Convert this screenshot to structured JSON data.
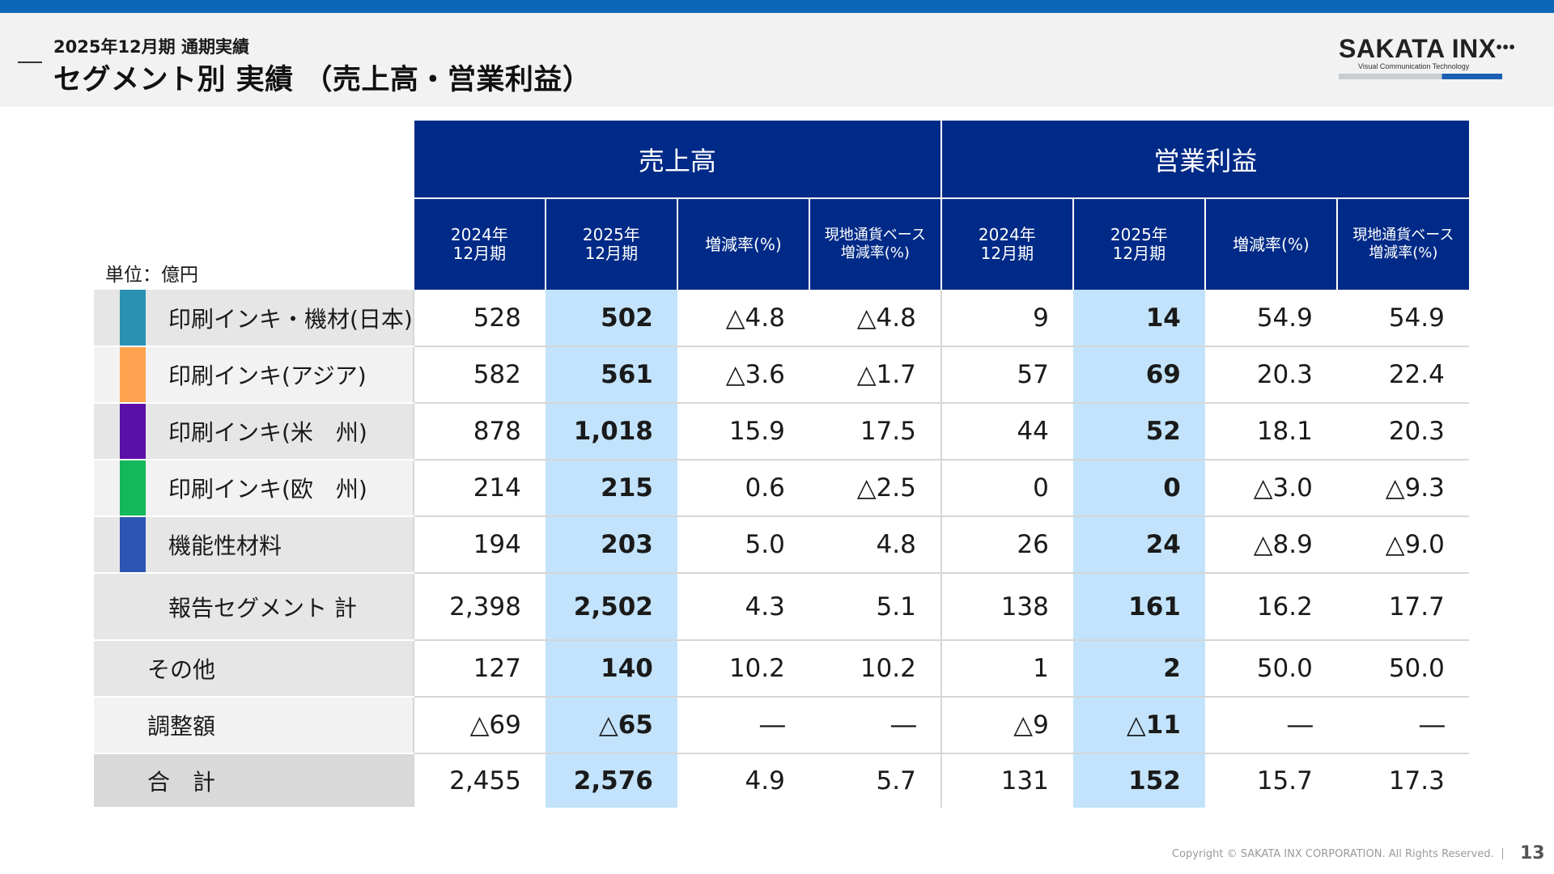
{
  "header": {
    "subtitle": "2025年12月期 通期実績",
    "title": "セグメント別 実績 （売上高・営業利益）"
  },
  "logo": {
    "name": "SAKATA INX",
    "tagline": "Visual Communication Technology"
  },
  "unit_label": "単位：億円",
  "table": {
    "groups": [
      "売上高",
      "営業利益"
    ],
    "subheaders": [
      [
        "2024年",
        "12月期"
      ],
      [
        "2025年",
        "12月期"
      ],
      [
        "増減率(%)"
      ],
      [
        "現地通貨ベース",
        "増減率(%)"
      ]
    ],
    "rows": [
      {
        "label": "印刷インキ・機材(日本)",
        "color": "#2b91b3",
        "values": [
          "528",
          "502",
          "△4.8",
          "△4.8",
          "9",
          "14",
          "54.9",
          "54.9"
        ]
      },
      {
        "label": "印刷インキ(アジア)",
        "color": "#ffa24f",
        "values": [
          "582",
          "561",
          "△3.6",
          "△1.7",
          "57",
          "69",
          "20.3",
          "22.4"
        ]
      },
      {
        "label": "印刷インキ(米　州)",
        "color": "#5a0fa6",
        "values": [
          "878",
          "1,018",
          "15.9",
          "17.5",
          "44",
          "52",
          "18.1",
          "20.3"
        ]
      },
      {
        "label": "印刷インキ(欧　州)",
        "color": "#12b85b",
        "values": [
          "214",
          "215",
          "0.6",
          "△2.5",
          "0",
          "0",
          "△3.0",
          "△9.3"
        ]
      },
      {
        "label": "機能性材料",
        "color": "#2d55b5",
        "values": [
          "194",
          "203",
          "5.0",
          "4.8",
          "26",
          "24",
          "△8.9",
          "△9.0"
        ]
      },
      {
        "label": "報告セグメント 計",
        "color": "",
        "values": [
          "2,398",
          "2,502",
          "4.3",
          "5.1",
          "138",
          "161",
          "16.2",
          "17.7"
        ]
      },
      {
        "label": "その他",
        "color": "",
        "values": [
          "127",
          "140",
          "10.2",
          "10.2",
          "1",
          "2",
          "50.0",
          "50.0"
        ]
      },
      {
        "label": "調整額",
        "color": "",
        "values": [
          "△69",
          "△65",
          "―",
          "―",
          "△9",
          "△11",
          "―",
          "―"
        ]
      },
      {
        "label": "合　計",
        "color": "",
        "values": [
          "2,455",
          "2,576",
          "4.9",
          "5.7",
          "131",
          "152",
          "15.7",
          "17.3"
        ]
      }
    ]
  },
  "footer": {
    "copyright": "Copyright © SAKATA INX CORPORATION. All Rights Reserved.",
    "page": "13"
  }
}
